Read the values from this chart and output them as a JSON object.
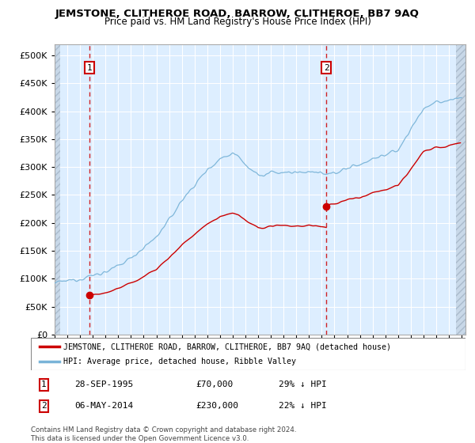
{
  "title": "JEMSTONE, CLITHEROE ROAD, BARROW, CLITHEROE, BB7 9AQ",
  "subtitle": "Price paid vs. HM Land Registry's House Price Index (HPI)",
  "legend_line1": "JEMSTONE, CLITHEROE ROAD, BARROW, CLITHEROE, BB7 9AQ (detached house)",
  "legend_line2": "HPI: Average price, detached house, Ribble Valley",
  "footer": "Contains HM Land Registry data © Crown copyright and database right 2024.\nThis data is licensed under the Open Government Licence v3.0.",
  "sale1_label": "1",
  "sale1_date": "28-SEP-1995",
  "sale1_price": "£70,000",
  "sale1_hpi": "29% ↓ HPI",
  "sale2_label": "2",
  "sale2_date": "06-MAY-2014",
  "sale2_price": "£230,000",
  "sale2_hpi": "22% ↓ HPI",
  "sale1_x": 1995.75,
  "sale1_y": 70000,
  "sale2_x": 2014.35,
  "sale2_y": 230000,
  "hpi_color": "#7ab4d8",
  "price_color": "#cc0000",
  "marker_color": "#cc0000",
  "dashed_line_color": "#cc0000",
  "ylim": [
    0,
    520000
  ],
  "xlim_start": 1993.0,
  "xlim_end": 2025.3,
  "yticks": [
    0,
    50000,
    100000,
    150000,
    200000,
    250000,
    300000,
    350000,
    400000,
    450000,
    500000
  ],
  "xticks": [
    1993,
    1994,
    1995,
    1996,
    1997,
    1998,
    1999,
    2000,
    2001,
    2002,
    2003,
    2004,
    2005,
    2006,
    2007,
    2008,
    2009,
    2010,
    2011,
    2012,
    2013,
    2014,
    2015,
    2016,
    2017,
    2018,
    2019,
    2020,
    2021,
    2022,
    2023,
    2024,
    2025
  ]
}
